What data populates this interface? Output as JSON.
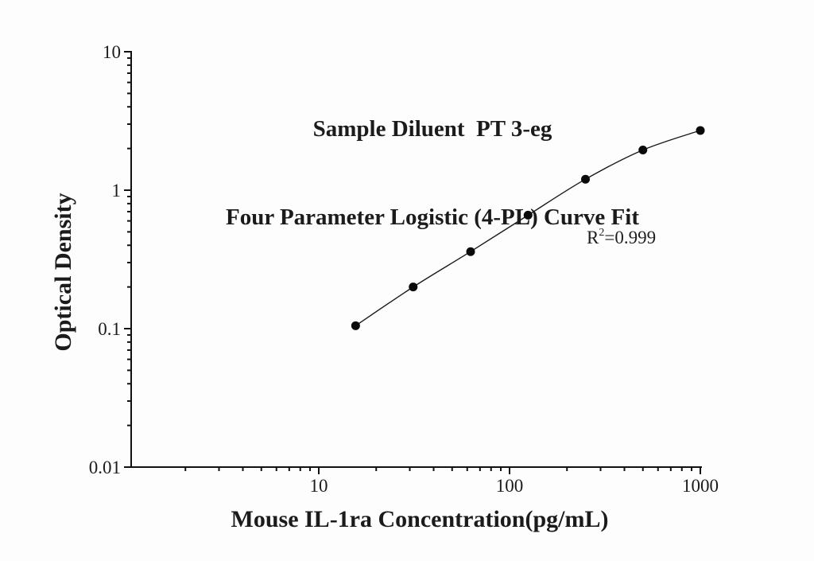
{
  "chart": {
    "title_line1": "Sample Diluent  PT 3-eg",
    "title_line2": "Four Parameter Logistic (4-PL) Curve Fit",
    "y_axis_label": "Optical Density",
    "x_axis_label": "Mouse IL-1ra Concentration(pg/mL)",
    "annotation": {
      "prefix": "R",
      "sup": "2",
      "rest": "=0.999"
    }
  },
  "chart_data": {
    "type": "scatter",
    "title": "Sample Diluent  PT 3-eg — Four Parameter Logistic (4-PL) Curve Fit",
    "xlabel": "Mouse IL-1ra Concentration(pg/mL)",
    "ylabel": "Optical Density",
    "x_scale": "log",
    "y_scale": "log",
    "xlim": [
      1,
      1000
    ],
    "ylim": [
      0.01,
      10
    ],
    "grid": false,
    "legend": "none",
    "marker_color": "#0a0a0a",
    "line_color": "#1a1a1a",
    "x": [
      15.6,
      31.25,
      62.5,
      125,
      250,
      500,
      1000
    ],
    "y": [
      0.105,
      0.2,
      0.36,
      0.66,
      1.2,
      1.95,
      2.7
    ],
    "x_major_ticks": [
      {
        "value": 10,
        "label": "10"
      },
      {
        "value": 100,
        "label": "100"
      },
      {
        "value": 1000,
        "label": "1000"
      }
    ],
    "y_major_ticks": [
      {
        "value": 10,
        "label": "10"
      },
      {
        "value": 1,
        "label": "1"
      },
      {
        "value": 0.1,
        "label": "0.1"
      },
      {
        "value": 0.01,
        "label": "0.01"
      }
    ],
    "x_minor_decades": [
      1,
      10,
      100
    ],
    "y_minor_decades": [
      0.01,
      0.1,
      1
    ],
    "r_squared": "0.999"
  }
}
